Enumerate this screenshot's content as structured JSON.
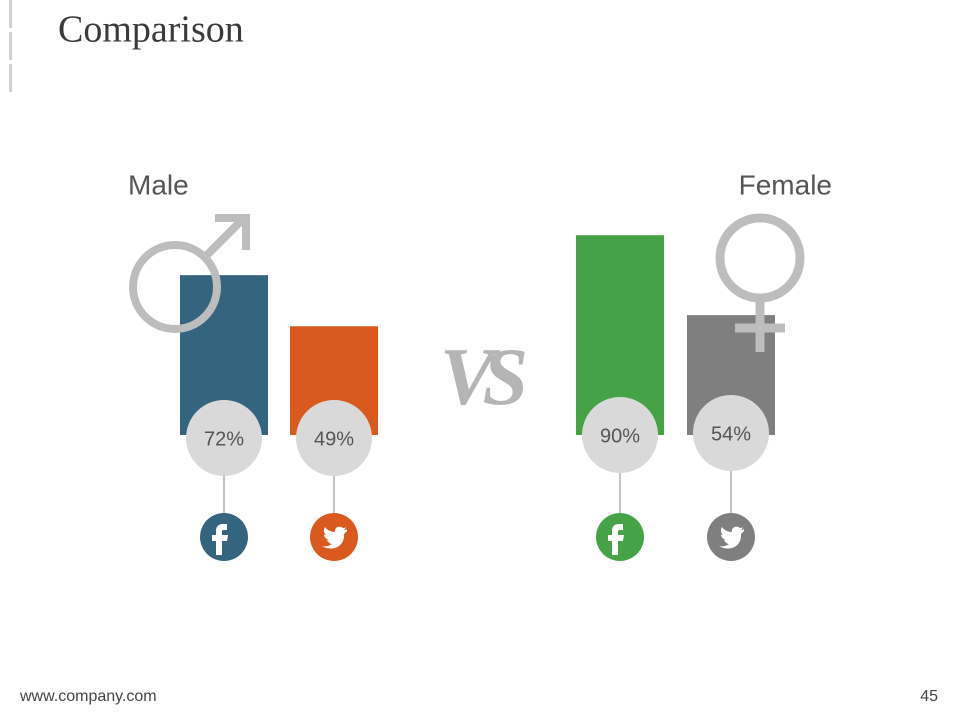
{
  "title": "Comparison",
  "footer": "www.company.com",
  "page_number": "45",
  "chart_data": {
    "type": "bar",
    "center_label": "VS",
    "groups": [
      {
        "name": "Male",
        "values": [
          72,
          49
        ],
        "value_labels": [
          "72%",
          "49%"
        ],
        "colors": [
          "#35647e",
          "#d9591f"
        ]
      },
      {
        "name": "Female",
        "values": [
          90,
          54
        ],
        "value_labels": [
          "90%",
          "54%"
        ],
        "colors": [
          "#46a247",
          "#7f7f7f"
        ]
      }
    ]
  }
}
